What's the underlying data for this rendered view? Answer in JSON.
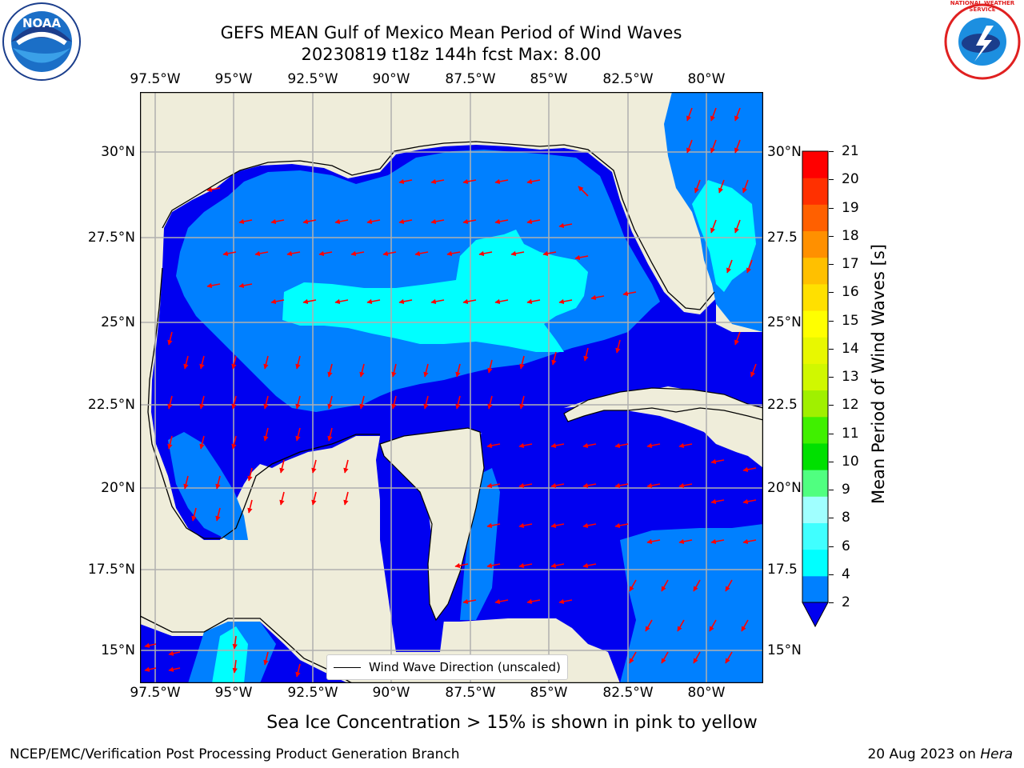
{
  "title": {
    "line1": "GEFS MEAN Gulf of Mexico Mean Period of Wind Waves",
    "line2": "20230819 t18z 144h fcst   Max: 8.00"
  },
  "map": {
    "lon_labels": [
      "97.5°W",
      "95°W",
      "92.5°W",
      "90°W",
      "87.5°W",
      "85°W",
      "82.5°W",
      "80°W"
    ],
    "lat_labels_left": [
      "30°N",
      "27.5°N",
      "25°N",
      "22.5°N",
      "20°N",
      "17.5°N",
      "15°N"
    ],
    "lat_labels_right": [
      "30°N",
      "27.5",
      "25°N",
      "22.5",
      "20°N",
      "17.5",
      "15°N"
    ],
    "extent": {
      "lon_min": -98.0,
      "lon_max": -78.2,
      "lat_min": 14.0,
      "lat_max": 31.8
    },
    "colors": {
      "land": "#efedda",
      "ocean_2_4": "#0080ff",
      "ocean_below_2": "#0000f0",
      "ocean_4_6": "#00ffff",
      "grid": "#b0b0b0",
      "arrows": "#ff0000"
    }
  },
  "legend": {
    "label": "Wind Wave Direction (unscaled)"
  },
  "colorbar": {
    "label": "Mean Period of Wind Waves [s]",
    "ticks": [
      "2",
      "4",
      "6",
      "8",
      "9",
      "10",
      "11",
      "12",
      "13",
      "14",
      "15",
      "16",
      "17",
      "18",
      "19",
      "20",
      "21"
    ],
    "colors": [
      "#0080ff",
      "#00ffff",
      "#40ffff",
      "#a0ffff",
      "#50ff80",
      "#00e000",
      "#40f000",
      "#a0f000",
      "#d0f800",
      "#e8f800",
      "#ffff00",
      "#ffe000",
      "#ffc000",
      "#ff9000",
      "#ff6000",
      "#ff3000",
      "#ff0000"
    ],
    "under_color": "#0000f0"
  },
  "notes": {
    "sea_ice": "Sea Ice Concentration > 15% is shown in pink to yellow"
  },
  "footer": {
    "left": "NCEP/EMC/Verification Post Processing Product Generation Branch",
    "date": "20 Aug 2023 on ",
    "machine": "Hera"
  },
  "logos": {
    "left_text": "NOAA",
    "right_text": "NATIONAL WEATHER SERVICE"
  }
}
